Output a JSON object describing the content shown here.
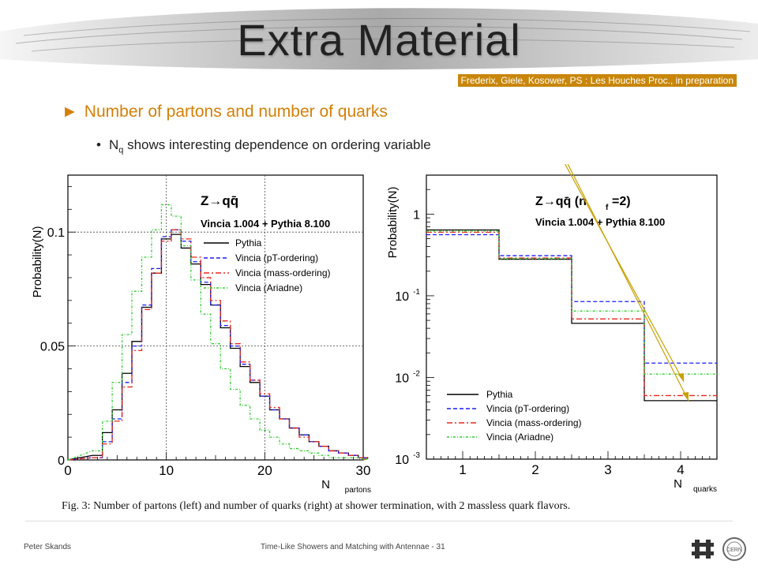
{
  "header": {
    "title": "Extra Material",
    "citation": "Frederix, Giele, Kosower, PS : Les Houches Proc., in preparation"
  },
  "bullets": {
    "main": "Number of partons and number of quarks",
    "sub_prefix": "N",
    "sub_subscript": "q",
    "sub_text": " shows interesting dependence on ordering variable"
  },
  "caption": "Fig. 3: Number of partons (left) and number of quarks (right) at shower termination, with 2 massless quark flavors.",
  "footer": {
    "author": "Peter Skands",
    "talk": "Time-Like Showers and Matching with Antennae - 31"
  },
  "colors": {
    "accent": "#d47f06",
    "citation_bg": "#c8860a",
    "pythia": "#000000",
    "vincia_pt": "#1a1aff",
    "vincia_mass": "#e8281e",
    "vincia_ariadne": "#33cc33",
    "annotation_arrow": "#c8a000"
  },
  "chart_data": [
    {
      "type": "line",
      "title": "Z→qq̄",
      "subtitle": "Vincia 1.004 + Pythia 8.100",
      "xlabel": "N",
      "xlabel_sub": "partons",
      "ylabel": "Probability(N)",
      "xlim": [
        0,
        30
      ],
      "ylim": [
        0,
        0.125
      ],
      "xticks": [
        0,
        10,
        20,
        30
      ],
      "yticks": [
        0,
        0.05,
        0.1
      ],
      "ytick_labels": [
        "0",
        "0.05",
        "0.1"
      ],
      "grid": true,
      "legend": "top-right",
      "x": [
        3,
        4,
        5,
        6,
        7,
        8,
        9,
        10,
        11,
        12,
        13,
        14,
        15,
        16,
        17,
        18,
        19,
        20,
        21,
        22,
        23,
        24,
        25,
        26,
        27,
        28,
        29,
        30
      ],
      "series": [
        {
          "name": "Pythia",
          "style": "solid",
          "values": [
            0.002,
            0.012,
            0.022,
            0.038,
            0.052,
            0.067,
            0.082,
            0.097,
            0.099,
            0.093,
            0.086,
            0.077,
            0.068,
            0.058,
            0.049,
            0.041,
            0.034,
            0.028,
            0.022,
            0.018,
            0.014,
            0.011,
            0.008,
            0.006,
            0.004,
            0.003,
            0.002,
            0.001
          ]
        },
        {
          "name": "Vincia (pT-ordering)",
          "style": "dashed",
          "values": [
            0.001,
            0.008,
            0.018,
            0.034,
            0.05,
            0.068,
            0.084,
            0.098,
            0.101,
            0.096,
            0.087,
            0.078,
            0.068,
            0.059,
            0.05,
            0.042,
            0.035,
            0.028,
            0.022,
            0.018,
            0.014,
            0.011,
            0.008,
            0.006,
            0.004,
            0.003,
            0.002,
            0.001
          ]
        },
        {
          "name": "Vincia (mass-ordering)",
          "style": "dashdot",
          "values": [
            0.001,
            0.007,
            0.017,
            0.032,
            0.048,
            0.066,
            0.082,
            0.096,
            0.101,
            0.097,
            0.089,
            0.08,
            0.07,
            0.061,
            0.051,
            0.043,
            0.035,
            0.029,
            0.023,
            0.018,
            0.014,
            0.01,
            0.008,
            0.006,
            0.004,
            0.003,
            0.002,
            0.001
          ]
        },
        {
          "name": "Vincia (Ariadne)",
          "style": "dashdot2",
          "values": [
            0.004,
            0.017,
            0.034,
            0.055,
            0.074,
            0.089,
            0.101,
            0.112,
            0.107,
            0.094,
            0.079,
            0.064,
            0.051,
            0.04,
            0.031,
            0.024,
            0.018,
            0.013,
            0.01,
            0.007,
            0.005,
            0.004,
            0.003,
            0.002,
            0.001,
            0.001,
            0.001,
            0.0005
          ]
        }
      ]
    },
    {
      "type": "line",
      "title": "Z→qq̄ (n",
      "title_sub": "f",
      "title_tail": "=2)",
      "subtitle": "Vincia 1.004 + Pythia 8.100",
      "xlabel": "N",
      "xlabel_sub": "quarks",
      "ylabel": "Probability(N)",
      "yscale": "log",
      "xlim": [
        0.5,
        4.5
      ],
      "ylim": [
        0.001,
        3
      ],
      "xticks": [
        1,
        2,
        3,
        4
      ],
      "yticks": [
        1,
        0.1,
        0.01,
        0.001
      ],
      "legend": "bottom-left",
      "x": [
        1,
        2,
        3,
        4
      ],
      "series": [
        {
          "name": "Pythia",
          "style": "solid",
          "values": [
            0.64,
            0.28,
            0.046,
            0.0052
          ]
        },
        {
          "name": "Vincia (pT-ordering)",
          "style": "dashed",
          "values": [
            0.56,
            0.31,
            0.085,
            0.015
          ]
        },
        {
          "name": "Vincia (mass-ordering)",
          "style": "dashdot",
          "values": [
            0.6,
            0.29,
            0.052,
            0.006
          ]
        },
        {
          "name": "Vincia (Ariadne)",
          "style": "dashdot2",
          "values": [
            0.62,
            0.285,
            0.065,
            0.011
          ]
        }
      ]
    }
  ]
}
